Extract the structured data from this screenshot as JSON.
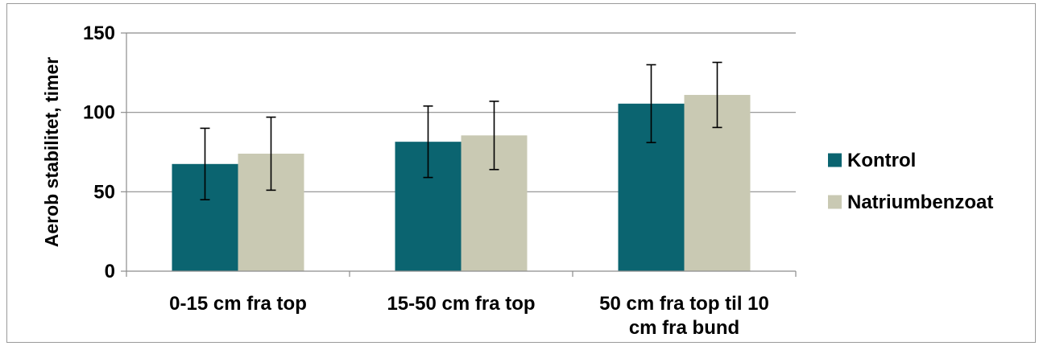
{
  "chart_data": {
    "type": "bar",
    "title": "",
    "xlabel": "",
    "ylabel": "Aerob stabilitet, timer",
    "ylim": [
      0,
      150
    ],
    "yticks": [
      0,
      50,
      100,
      150
    ],
    "grid": true,
    "legend_position": "right",
    "categories": [
      [
        "0-15 cm fra top"
      ],
      [
        "15-50 cm fra top"
      ],
      [
        "50 cm fra top til 10",
        "cm fra bund"
      ]
    ],
    "series": [
      {
        "name": "Kontrol",
        "color": "#0b6470",
        "values": [
          67.5,
          81.5,
          105.5
        ],
        "errors": [
          22.5,
          22.5,
          24.5
        ]
      },
      {
        "name": "Natriumbenzoat",
        "color": "#c9c9b3",
        "values": [
          74,
          85.5,
          111
        ],
        "errors": [
          23,
          21.5,
          20.5
        ]
      }
    ]
  }
}
